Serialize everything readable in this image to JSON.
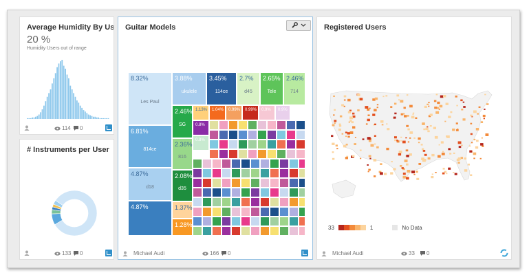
{
  "humidity": {
    "title": "Average Humidity By Us...",
    "big_value": "20 %",
    "subtitle": "Humidity Users out of range",
    "views": "114",
    "comments": "0",
    "chart_data": {
      "type": "bar",
      "values": [
        1,
        1,
        1,
        2,
        2,
        3,
        4,
        6,
        9,
        13,
        18,
        24,
        30,
        35,
        40,
        48,
        55,
        62,
        70,
        75,
        78,
        80,
        72,
        68,
        60,
        55,
        45,
        40,
        35,
        30,
        25,
        22,
        18,
        15,
        12,
        10,
        8,
        6,
        5,
        4,
        3,
        3,
        2,
        2,
        1,
        1,
        1,
        1,
        1,
        1
      ],
      "color": "#8ec8ec"
    }
  },
  "instruments": {
    "title": "# Instruments per User",
    "views": "133",
    "comments": "0",
    "chart_data": {
      "type": "pie",
      "values": [
        82,
        8,
        3,
        2,
        2,
        3
      ],
      "colors": [
        "#cfe5f7",
        "#5aa8de",
        "#79c29b",
        "#3a7fbf",
        "#f0c050",
        "#a0d0f0"
      ]
    }
  },
  "guitar": {
    "title": "Guitar Models",
    "author": "Michael Audi",
    "views": "166",
    "comments": "0",
    "cells": [
      {
        "label": "8.32%",
        "sub": "Les Paul",
        "color": "#cfe5f7",
        "dark": true
      },
      {
        "label": "6.81%",
        "sub": "814ce",
        "color": "#6aaddf",
        "dark": false
      },
      {
        "label": "4.87%",
        "sub": "d18",
        "color": "#a9d0f0",
        "dark": true
      },
      {
        "label": "4.87%",
        "sub": "",
        "color": "#3a7fbf",
        "dark": false
      },
      {
        "label": "3.88%",
        "sub": "ukulele",
        "color": "#a8cdee",
        "dark": false
      },
      {
        "label": "3.45%",
        "sub": "114ce",
        "color": "#2a5f9e",
        "dark": false
      },
      {
        "label": "2.7%",
        "sub": "d45",
        "color": "#d8f2c5",
        "dark": true
      },
      {
        "label": "2.65%",
        "sub": "Tele",
        "color": "#5ec45a",
        "dark": false
      },
      {
        "label": "2.46%",
        "sub": "714",
        "color": "#b8eaa0",
        "dark": true
      },
      {
        "label": "2.46%",
        "sub": "SG",
        "color": "#26a94a",
        "dark": false
      },
      {
        "label": "2.36%",
        "sub": "816",
        "color": "#98d88a",
        "dark": true
      },
      {
        "label": "2.08%",
        "sub": "d35",
        "color": "#1e8e3e",
        "dark": false
      },
      {
        "label": "1.37%",
        "sub": "",
        "color": "#ffd49c",
        "dark": true
      },
      {
        "label": "1.28%",
        "sub": "",
        "color": "#f89822",
        "dark": false
      },
      {
        "label": "1.13%",
        "sub": "",
        "color": "#ffd07a",
        "dark": true
      },
      {
        "label": "1.04%",
        "sub": "",
        "color": "#f46a1e",
        "dark": false
      },
      {
        "label": "0.99%",
        "sub": "",
        "color": "#f4a060",
        "dark": false
      },
      {
        "label": "0.99%",
        "sub": "",
        "color": "#c62a1c",
        "dark": false
      },
      {
        "label": "0.9%",
        "sub": "",
        "color": "#f6c8d4",
        "dark": false
      },
      {
        "label": "0.9%",
        "sub": "",
        "color": "#e9d0ec",
        "dark": false
      },
      {
        "label": "0.8%",
        "sub": "",
        "color": "#8a2ca6",
        "dark": false
      },
      {
        "label": "0.8%",
        "sub": "",
        "color": "#c8ead0",
        "dark": false
      }
    ],
    "mosaic_colors": [
      "#e83a8c",
      "#9a2f9e",
      "#e8c2d8",
      "#35a24e",
      "#9ed48a",
      "#f29a2e",
      "#1b4f8a",
      "#c7d9f0",
      "#d83a2e",
      "#f6b6c8",
      "#7b3ba0",
      "#3aa0a0",
      "#f7e070",
      "#5a8fd0",
      "#2f9a5a",
      "#e0e0a0",
      "#c05a9a",
      "#80c8e0",
      "#f07050",
      "#60b060",
      "#b0b0e0",
      "#a0d0a0",
      "#f0a0c0",
      "#4a6ab0"
    ]
  },
  "users": {
    "title": "Registered Users",
    "author": "Michael Audi",
    "views": "33",
    "comments": "0",
    "legend_max": "33",
    "legend_min": "1",
    "legend_nodata": "No Data",
    "legend_colors": [
      "#b5261c",
      "#e3501f",
      "#f38a3a",
      "#f9b46a",
      "#fcd49e"
    ],
    "nodata_color": "#e6e6e6"
  },
  "menu_icon": "wrench-icon"
}
